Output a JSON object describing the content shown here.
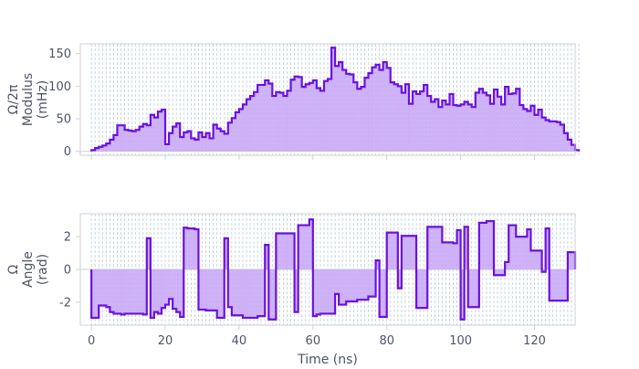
{
  "chart_data": [
    {
      "type": "area",
      "ylabel_lines": [
        "Ω/2π",
        "Modulus",
        "(mHz)"
      ],
      "xlim": [
        -3,
        131
      ],
      "ylim": [
        -6,
        165
      ],
      "yticks": [
        0,
        50,
        100,
        150
      ],
      "xticks": [
        0,
        20,
        40,
        60,
        80,
        100,
        120
      ],
      "step_width": 1,
      "values": [
        2,
        5,
        7,
        9,
        12,
        18,
        25,
        40,
        40,
        33,
        32,
        31,
        33,
        38,
        42,
        40,
        56,
        52,
        61,
        64,
        11,
        28,
        38,
        43,
        22,
        29,
        31,
        20,
        18,
        29,
        22,
        28,
        20,
        41,
        35,
        31,
        27,
        44,
        51,
        60,
        65,
        72,
        80,
        85,
        91,
        102,
        102,
        109,
        104,
        85,
        91,
        90,
        85,
        93,
        110,
        115,
        114,
        99,
        103,
        105,
        109,
        97,
        93,
        108,
        111,
        159,
        131,
        137,
        125,
        119,
        118,
        106,
        96,
        99,
        113,
        120,
        129,
        133,
        125,
        137,
        128,
        106,
        103,
        100,
        90,
        103,
        73,
        92,
        88,
        92,
        102,
        85,
        76,
        80,
        68,
        78,
        72,
        88,
        71,
        70,
        72,
        76,
        72,
        68,
        90,
        96,
        90,
        86,
        73,
        95,
        84,
        72,
        99,
        88,
        89,
        96,
        71,
        65,
        62,
        70,
        56,
        64,
        52,
        48,
        46,
        46,
        45,
        41,
        28,
        18,
        10,
        2
      ]
    },
    {
      "type": "area",
      "ylabel_lines": [
        "Ω",
        "Angle",
        "(rad)"
      ],
      "xlabel": "Time (ns)",
      "xlim": [
        -3,
        131
      ],
      "ylim": [
        -3.4,
        3.4
      ],
      "yticks": [
        -2,
        0,
        2
      ],
      "xticks": [
        0,
        20,
        40,
        60,
        80,
        100,
        120
      ],
      "step_width": 1,
      "values": [
        -2.95,
        -2.95,
        -2.2,
        -2.2,
        -2.3,
        -2.6,
        -2.7,
        -2.7,
        -2.75,
        -2.7,
        -2.7,
        -2.7,
        -2.7,
        -2.7,
        -2.75,
        1.9,
        -2.95,
        -2.6,
        -2.7,
        -2.35,
        -2.15,
        -1.8,
        -2.4,
        -2.6,
        -2.9,
        2.55,
        2.5,
        2.5,
        2.45,
        -2.45,
        -2.45,
        -2.5,
        -2.5,
        -2.5,
        -2.95,
        -2.95,
        1.9,
        -2.3,
        -2.8,
        -2.8,
        -2.8,
        -2.95,
        -2.95,
        -2.95,
        -2.95,
        -2.85,
        -2.85,
        1.5,
        -3.05,
        -3.05,
        2.2,
        2.2,
        2.2,
        2.2,
        2.2,
        -2.6,
        2.7,
        2.7,
        2.7,
        3.05,
        -2.85,
        -2.75,
        -2.7,
        -2.7,
        -2.7,
        -2.7,
        -1.5,
        -2.15,
        -2.15,
        -1.95,
        -1.95,
        -1.95,
        -1.85,
        -1.85,
        -1.85,
        -1.65,
        -1.65,
        0.55,
        -2.9,
        -2.9,
        2.25,
        2.25,
        2.25,
        -1.15,
        2.05,
        2.05,
        2.05,
        2.05,
        -2.35,
        -2.35,
        -2.35,
        2.6,
        2.6,
        2.6,
        2.6,
        1.65,
        1.65,
        1.65,
        1.6,
        2.4,
        -3.05,
        2.6,
        -2.3,
        -2.3,
        -2.3,
        2.85,
        2.85,
        2.95,
        2.95,
        -0.35,
        -0.35,
        -0.35,
        0.45,
        2.7,
        2.7,
        2.0,
        2.0,
        2.0,
        2.45,
        1.15,
        1.15,
        1.15,
        -0.15,
        2.5,
        -1.9,
        -1.9,
        -1.9,
        -1.9,
        -1.9,
        1.05,
        1.05
      ]
    }
  ],
  "colors": {
    "line": "#6a11e0",
    "fill": "#c9a8f6",
    "grid": "#b9cde0",
    "axis": "#ccd2d8",
    "text": "#4d5566"
  }
}
